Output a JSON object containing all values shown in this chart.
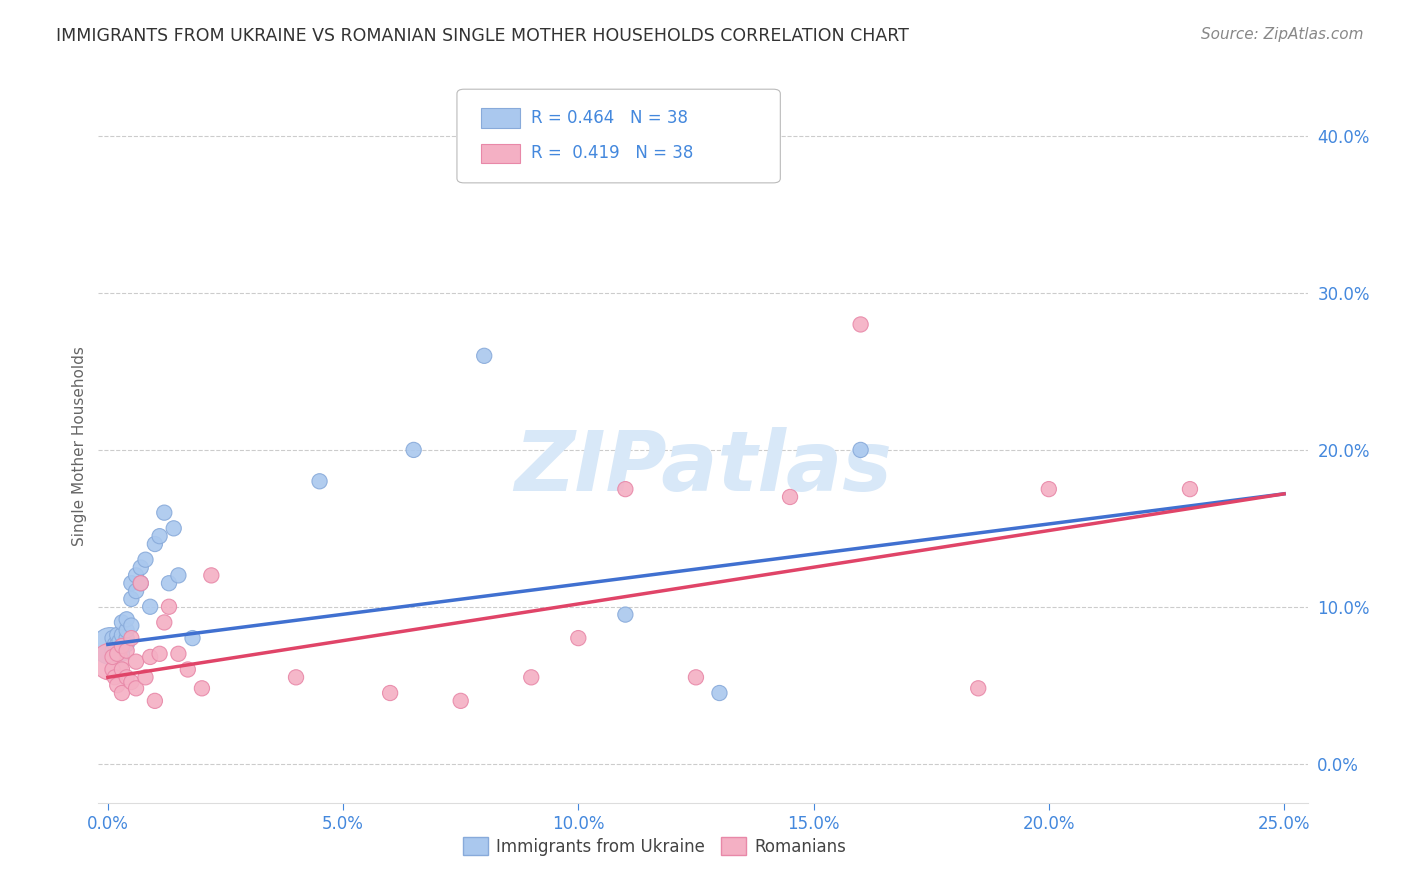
{
  "title": "IMMIGRANTS FROM UKRAINE VS ROMANIAN SINGLE MOTHER HOUSEHOLDS CORRELATION CHART",
  "source": "Source: ZipAtlas.com",
  "xlabel_ticks": [
    "0.0%",
    "5.0%",
    "10.0%",
    "15.0%",
    "20.0%",
    "25.0%"
  ],
  "ylabel_ticks": [
    "0.0%",
    "10.0%",
    "20.0%",
    "30.0%",
    "40.0%"
  ],
  "xlabel_vals": [
    0.0,
    0.05,
    0.1,
    0.15,
    0.2,
    0.25
  ],
  "ylabel_vals": [
    0.0,
    0.1,
    0.2,
    0.3,
    0.4
  ],
  "xlim": [
    -0.002,
    0.255
  ],
  "ylim": [
    -0.025,
    0.43
  ],
  "ukraine_x": [
    0.0005,
    0.001,
    0.001,
    0.0015,
    0.002,
    0.002,
    0.002,
    0.0025,
    0.003,
    0.003,
    0.003,
    0.003,
    0.004,
    0.004,
    0.004,
    0.004,
    0.005,
    0.005,
    0.005,
    0.006,
    0.006,
    0.007,
    0.007,
    0.008,
    0.009,
    0.01,
    0.011,
    0.012,
    0.013,
    0.014,
    0.015,
    0.018,
    0.045,
    0.065,
    0.08,
    0.11,
    0.13,
    0.16
  ],
  "ukraine_y": [
    0.075,
    0.072,
    0.08,
    0.076,
    0.068,
    0.076,
    0.082,
    0.078,
    0.07,
    0.075,
    0.082,
    0.09,
    0.076,
    0.08,
    0.085,
    0.092,
    0.115,
    0.105,
    0.088,
    0.12,
    0.11,
    0.115,
    0.125,
    0.13,
    0.1,
    0.14,
    0.145,
    0.16,
    0.115,
    0.15,
    0.12,
    0.08,
    0.18,
    0.2,
    0.26,
    0.095,
    0.045,
    0.2
  ],
  "ukraine_sizes": [
    700,
    120,
    120,
    120,
    120,
    120,
    120,
    120,
    120,
    120,
    120,
    120,
    120,
    120,
    120,
    120,
    120,
    120,
    120,
    120,
    120,
    120,
    120,
    120,
    120,
    120,
    120,
    120,
    120,
    120,
    120,
    120,
    120,
    120,
    120,
    120,
    120,
    120
  ],
  "romanian_x": [
    0.0005,
    0.001,
    0.001,
    0.0015,
    0.002,
    0.002,
    0.003,
    0.003,
    0.003,
    0.004,
    0.004,
    0.005,
    0.005,
    0.006,
    0.006,
    0.007,
    0.008,
    0.009,
    0.01,
    0.011,
    0.012,
    0.013,
    0.015,
    0.017,
    0.02,
    0.022,
    0.04,
    0.06,
    0.075,
    0.09,
    0.1,
    0.11,
    0.125,
    0.145,
    0.16,
    0.185,
    0.2,
    0.23
  ],
  "romanian_y": [
    0.065,
    0.06,
    0.068,
    0.055,
    0.05,
    0.07,
    0.045,
    0.06,
    0.075,
    0.055,
    0.072,
    0.052,
    0.08,
    0.048,
    0.065,
    0.115,
    0.055,
    0.068,
    0.04,
    0.07,
    0.09,
    0.1,
    0.07,
    0.06,
    0.048,
    0.12,
    0.055,
    0.045,
    0.04,
    0.055,
    0.08,
    0.175,
    0.055,
    0.17,
    0.28,
    0.048,
    0.175,
    0.175
  ],
  "romanian_sizes": [
    700,
    120,
    120,
    120,
    120,
    120,
    120,
    120,
    120,
    120,
    120,
    120,
    120,
    120,
    120,
    120,
    120,
    120,
    120,
    120,
    120,
    120,
    120,
    120,
    120,
    120,
    120,
    120,
    120,
    120,
    120,
    120,
    120,
    120,
    120,
    120,
    120,
    120
  ],
  "ukraine_color": "#aac8ee",
  "romanian_color": "#f4b0c4",
  "ukraine_edge": "#88aada",
  "romanian_edge": "#e888a8",
  "line_ukraine": "#4070d0",
  "line_romanian": "#e04468",
  "line_ukraine_start_y": 0.076,
  "line_ukraine_end_y": 0.172,
  "line_romanian_start_y": 0.055,
  "line_romanian_end_y": 0.172,
  "R_ukraine": 0.464,
  "N_ukraine": 38,
  "R_romanian": 0.419,
  "N_romanian": 38,
  "ylabel": "Single Mother Households",
  "legend_labels": [
    "Immigrants from Ukraine",
    "Romanians"
  ],
  "grid_color": "#cccccc",
  "title_color": "#333333",
  "axis_color": "#4488dd",
  "background_color": "#ffffff",
  "watermark_color": "#d8e8f8"
}
